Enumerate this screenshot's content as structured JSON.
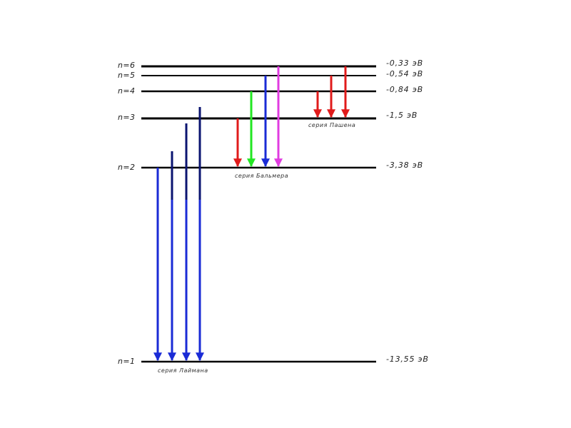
{
  "levels": [
    {
      "n_label": "n=6",
      "energy_label": "-0,33  эВ"
    },
    {
      "n_label": "n=5",
      "energy_label": "-0,54  эВ"
    },
    {
      "n_label": "n=4",
      "energy_label": "-0,84  эВ"
    },
    {
      "n_label": "n=3",
      "energy_label": "-1,5  эВ"
    },
    {
      "n_label": "n=2",
      "energy_label": "-3,38  эВ"
    },
    {
      "n_label": "n=1",
      "energy_label": "-13,55  эВ"
    }
  ],
  "series": [
    {
      "label": "серия Лаймана",
      "to_level": 1,
      "transitions_from": [
        2,
        3,
        4,
        5
      ],
      "color": "#1a2bd6"
    },
    {
      "label": "серия Бальмера",
      "to_level": 2,
      "transitions_from": [
        3,
        4,
        5,
        6
      ],
      "colors": [
        "#e01b1b",
        "#22e622",
        "#1a2bd6",
        "#e03ce0"
      ]
    },
    {
      "label": "серия Пашена",
      "to_level": 3,
      "transitions_from": [
        4,
        5,
        6
      ],
      "color": "#e01b1b"
    }
  ],
  "colors": {
    "level_line": "#000000",
    "dark_blue_tail": "#0b1470"
  }
}
